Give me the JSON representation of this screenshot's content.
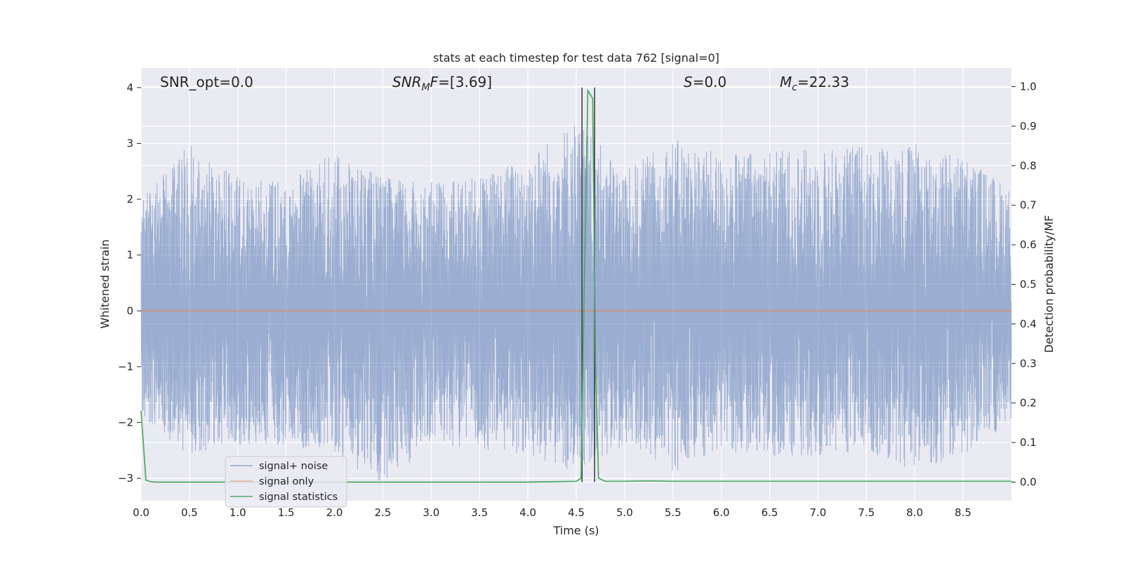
{
  "chart_data": {
    "type": "line",
    "title": "stats at each timestep for test data 762 [signal=0]",
    "xlabel": "Time (s)",
    "ylabel": "Whitened strain",
    "ylabel_right": "Detection probability/MF",
    "xlim": [
      0.0,
      9.0
    ],
    "ylim": [
      -3.4,
      4.35
    ],
    "ylim_right": [
      -0.047,
      1.047
    ],
    "xticks": [
      "0.0",
      "0.5",
      "1.0",
      "1.5",
      "2.0",
      "2.5",
      "3.0",
      "3.5",
      "4.0",
      "4.5",
      "5.0",
      "5.5",
      "6.0",
      "6.5",
      "7.0",
      "7.5",
      "8.0",
      "8.5"
    ],
    "yticks": [
      "4",
      "3",
      "2",
      "1",
      "0",
      "−1",
      "−2",
      "−3"
    ],
    "yticks_right": [
      "1.0",
      "0.9",
      "0.8",
      "0.7",
      "0.6",
      "0.5",
      "0.4",
      "0.3",
      "0.2",
      "0.1",
      "0.0"
    ],
    "grid": true,
    "legend_position": "lower-left",
    "annotations": {
      "snr_opt": "SNR_opt=0.0",
      "snr_mf_base": "SNR",
      "snr_mf_sub": "M",
      "snr_mf_tail": "F",
      "snr_mf_value": "=[3.69]",
      "s_label": "S",
      "s_value": "=0.0",
      "mc_base": "M",
      "mc_sub": "c",
      "mc_value": "=22.33"
    },
    "vertical_lines": [
      4.56,
      4.69
    ],
    "noise_profile": {
      "x": [
        0.0,
        0.5,
        1.0,
        1.5,
        2.0,
        2.5,
        3.0,
        3.5,
        4.0,
        4.5,
        5.0,
        5.5,
        6.0,
        6.5,
        7.0,
        7.5,
        8.0,
        8.5,
        9.0
      ],
      "upper": [
        2.0,
        3.0,
        2.4,
        2.3,
        2.85,
        2.4,
        2.3,
        2.4,
        2.8,
        3.45,
        2.5,
        3.1,
        2.8,
        2.9,
        2.9,
        3.0,
        3.0,
        2.8,
        2.2
      ],
      "lower": [
        -1.9,
        -2.6,
        -2.4,
        -2.4,
        -2.6,
        -3.1,
        -2.4,
        -2.5,
        -2.6,
        -2.9,
        -2.4,
        -2.9,
        -2.5,
        -2.6,
        -2.6,
        -2.5,
        -2.9,
        -2.6,
        -2.0
      ]
    },
    "series": [
      {
        "name": "signal+ noise",
        "color": "#4c72b0",
        "kind": "noise"
      },
      {
        "name": "signal only",
        "color": "#dd8452",
        "axis": "left",
        "x": [
          0.0,
          9.0
        ],
        "y": [
          0.0,
          0.0
        ]
      },
      {
        "name": "signal statistics",
        "color": "#55a868",
        "axis": "right",
        "x": [
          0.0,
          0.05,
          0.1,
          0.15,
          0.5,
          1.0,
          2.0,
          3.0,
          4.0,
          4.5,
          4.55,
          4.58,
          4.62,
          4.67,
          4.7,
          4.73,
          4.8,
          5.0,
          5.25,
          5.5,
          6.0,
          7.0,
          8.0,
          9.0
        ],
        "y": [
          0.18,
          0.005,
          0.001,
          0.0,
          0.0,
          0.0,
          0.0,
          0.0,
          0.0,
          0.002,
          0.01,
          0.45,
          0.99,
          0.97,
          0.3,
          0.01,
          0.002,
          0.002,
          0.003,
          0.002,
          0.002,
          0.002,
          0.002,
          0.002
        ]
      }
    ]
  }
}
